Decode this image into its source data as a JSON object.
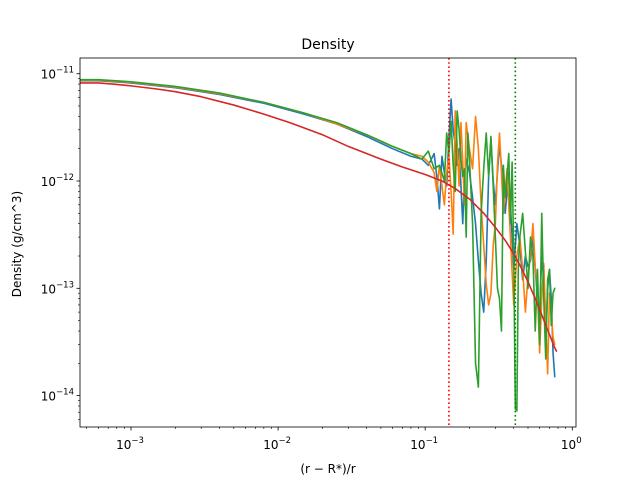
{
  "chart_data": {
    "type": "line",
    "title": "Density",
    "xlabel": "(r − R*)/r",
    "ylabel": "Density (g/cm^3)",
    "xscale": "log",
    "yscale": "log",
    "xlim": [
      0.00045,
      1.06
    ],
    "ylim": [
      5.1e-15,
      1.4e-11
    ],
    "grid": false,
    "legend": "none",
    "x_ticks": [
      {
        "value": 0.001,
        "base": "10",
        "exp": "−3"
      },
      {
        "value": 0.01,
        "base": "10",
        "exp": "−2"
      },
      {
        "value": 0.1,
        "base": "10",
        "exp": "−1"
      },
      {
        "value": 1,
        "base": "10",
        "exp": "0"
      }
    ],
    "y_ticks": [
      {
        "value": 1e-14,
        "base": "10",
        "exp": "−14"
      },
      {
        "value": 1e-13,
        "base": "10",
        "exp": "−13"
      },
      {
        "value": 1e-12,
        "base": "10",
        "exp": "−12"
      },
      {
        "value": 1e-11,
        "base": "10",
        "exp": "−11"
      }
    ],
    "vlines": [
      {
        "x": 0.145,
        "color": "#ff0000",
        "style": "dotted"
      },
      {
        "x": 0.41,
        "color": "#008000",
        "style": "dotted"
      }
    ],
    "series": [
      {
        "color": "#1f77b4",
        "x": [
          0.00045,
          0.0006,
          0.001,
          0.002,
          0.004,
          0.008,
          0.015,
          0.025,
          0.04,
          0.06,
          0.08,
          0.095,
          0.105,
          0.115,
          0.12,
          0.125,
          0.13,
          0.135,
          0.14,
          0.145,
          0.15,
          0.155,
          0.16,
          0.165,
          0.17,
          0.175,
          0.18,
          0.185,
          0.19,
          0.2,
          0.21,
          0.22,
          0.23,
          0.24,
          0.25,
          0.26,
          0.27,
          0.28,
          0.29,
          0.3,
          0.31,
          0.32,
          0.33,
          0.34,
          0.35,
          0.36,
          0.37,
          0.38,
          0.39,
          0.4,
          0.42,
          0.44,
          0.46,
          0.48,
          0.5,
          0.52,
          0.54,
          0.56,
          0.58,
          0.6,
          0.62,
          0.64,
          0.66,
          0.68,
          0.7,
          0.72,
          0.74,
          0.76
        ],
        "y": [
          8.6e-12,
          8.6e-12,
          8.2e-12,
          7.4e-12,
          6.4e-12,
          5.3e-12,
          4.2e-12,
          3.4e-12,
          2.6e-12,
          2e-12,
          1.7e-12,
          1.6e-12,
          1.4e-12,
          1.8e-12,
          1.1e-12,
          5.5e-13,
          1.7e-12,
          1.2e-12,
          9e-13,
          2.5e-12,
          5.8e-12,
          3e-12,
          2.2e-12,
          1.4e-12,
          2e-12,
          9e-13,
          4e-13,
          1.1e-12,
          1.6e-12,
          1.2e-12,
          7e-13,
          4e-13,
          1.8e-13,
          9e-14,
          6e-14,
          1.8e-13,
          1.1e-12,
          2.4e-12,
          1e-12,
          6e-13,
          1.2e-12,
          2.2e-12,
          1.4e-12,
          8e-13,
          5e-13,
          8e-13,
          1.2e-12,
          6e-13,
          3e-13,
          1.5e-13,
          4e-13,
          2.5e-13,
          1.2e-13,
          2e-13,
          1.6e-13,
          1.8e-13,
          3e-13,
          1.5e-13,
          8e-14,
          6e-14,
          2e-13,
          1.2e-13,
          3e-14,
          1e-13,
          1.5e-13,
          8e-14,
          2.5e-14,
          1.5e-14
        ]
      },
      {
        "color": "#ff7f0e",
        "x": [
          0.00045,
          0.0006,
          0.001,
          0.002,
          0.004,
          0.008,
          0.015,
          0.025,
          0.04,
          0.06,
          0.08,
          0.095,
          0.105,
          0.115,
          0.12,
          0.125,
          0.13,
          0.135,
          0.14,
          0.145,
          0.15,
          0.155,
          0.16,
          0.165,
          0.17,
          0.175,
          0.18,
          0.185,
          0.19,
          0.2,
          0.21,
          0.22,
          0.23,
          0.24,
          0.25,
          0.26,
          0.27,
          0.28,
          0.29,
          0.3,
          0.31,
          0.32,
          0.33,
          0.34,
          0.35,
          0.36,
          0.37,
          0.38,
          0.39,
          0.4,
          0.42,
          0.44,
          0.46,
          0.48,
          0.5,
          0.52,
          0.54,
          0.56,
          0.58,
          0.6,
          0.62,
          0.64,
          0.66,
          0.68,
          0.7,
          0.72,
          0.74,
          0.76
        ],
        "y": [
          8.7e-12,
          8.7e-12,
          8.3e-12,
          7.5e-12,
          6.5e-12,
          5.4e-12,
          4.3e-12,
          3.4e-12,
          2.7e-12,
          2.1e-12,
          1.8e-12,
          1.7e-12,
          1.5e-12,
          1.2e-12,
          8e-13,
          1.4e-12,
          9e-13,
          6e-13,
          1.2e-12,
          1.7e-12,
          8e-13,
          3.2e-13,
          4.5e-12,
          2.2e-12,
          9e-13,
          3.5e-12,
          1.5e-12,
          6e-13,
          3.5e-12,
          2e-12,
          1.3e-12,
          4e-12,
          2e-12,
          6e-13,
          2.5e-13,
          1.1e-13,
          7e-14,
          9e-14,
          2.5e-13,
          4e-13,
          1.4e-12,
          2.8e-12,
          1.2e-12,
          5e-13,
          8e-13,
          1.3e-12,
          6e-13,
          3e-13,
          1.4e-13,
          7e-14,
          2e-13,
          3e-13,
          1.5e-13,
          6e-14,
          1.3e-13,
          2e-13,
          4e-13,
          1.6e-13,
          9e-14,
          2.5e-14,
          8e-14,
          1.7e-13,
          5e-14,
          1.6e-14,
          9e-14,
          6e-14,
          3.5e-14,
          3e-14
        ]
      },
      {
        "color": "#2ca02c",
        "x": [
          0.00045,
          0.0006,
          0.001,
          0.002,
          0.004,
          0.008,
          0.015,
          0.025,
          0.04,
          0.06,
          0.08,
          0.095,
          0.105,
          0.115,
          0.125,
          0.135,
          0.14,
          0.145,
          0.15,
          0.155,
          0.16,
          0.165,
          0.17,
          0.175,
          0.18,
          0.185,
          0.19,
          0.195,
          0.2,
          0.21,
          0.22,
          0.23,
          0.24,
          0.25,
          0.26,
          0.27,
          0.28,
          0.29,
          0.3,
          0.31,
          0.32,
          0.33,
          0.34,
          0.35,
          0.36,
          0.37,
          0.38,
          0.39,
          0.4,
          0.41,
          0.42,
          0.43,
          0.44,
          0.46,
          0.48,
          0.5,
          0.52,
          0.54,
          0.56,
          0.58,
          0.6,
          0.62,
          0.64,
          0.66,
          0.68,
          0.7,
          0.72,
          0.74,
          0.76
        ],
        "y": [
          8.8e-12,
          8.8e-12,
          8.4e-12,
          7.6e-12,
          6.6e-12,
          5.4e-12,
          4.3e-12,
          3.5e-12,
          2.7e-12,
          2.1e-12,
          1.8e-12,
          1.6e-12,
          1.9e-12,
          1.3e-12,
          1.4e-12,
          1e-12,
          2.8e-12,
          1.8e-12,
          3.6e-12,
          1.4e-12,
          8e-13,
          4.5e-12,
          3e-12,
          1.6e-12,
          1.1e-12,
          1.3e-12,
          3e-13,
          2.8e-12,
          1.6e-12,
          4e-13,
          2e-14,
          1.2e-14,
          5e-13,
          1.3e-12,
          2.8e-12,
          1.1e-12,
          2.6e-12,
          9e-13,
          3e-13,
          1e-13,
          8e-14,
          4e-14,
          1.4e-12,
          7e-13,
          1.1e-12,
          1.8e-12,
          4e-13,
          1.5e-12,
          2e-13,
          7.5e-15,
          7.2e-15,
          1.6e-13,
          3e-13,
          5e-13,
          2.2e-13,
          1e-13,
          3e-13,
          2e-13,
          4e-14,
          1.5e-13,
          3e-14,
          5e-13,
          8e-14,
          2.2e-14,
          1.2e-13,
          1.5e-13,
          4.5e-14,
          9e-14,
          1e-13
        ]
      },
      {
        "color": "#d62728",
        "x": [
          0.00045,
          0.0006,
          0.00075,
          0.001,
          0.0015,
          0.002,
          0.003,
          0.005,
          0.008,
          0.012,
          0.02,
          0.03,
          0.05,
          0.07,
          0.1,
          0.13,
          0.16,
          0.2,
          0.25,
          0.3,
          0.35,
          0.4,
          0.45,
          0.5,
          0.55,
          0.6,
          0.65,
          0.7,
          0.75,
          0.78
        ],
        "y": [
          8.2e-12,
          8.2e-12,
          8e-12,
          7.7e-12,
          7.2e-12,
          6.8e-12,
          6.1e-12,
          5.1e-12,
          4.2e-12,
          3.5e-12,
          2.7e-12,
          2.1e-12,
          1.6e-12,
          1.35e-12,
          1.15e-12,
          1e-12,
          8.5e-13,
          6.8e-13,
          5e-13,
          3.7e-13,
          2.8e-13,
          2.1e-13,
          1.55e-13,
          1.15e-13,
          8.5e-14,
          6.3e-14,
          4.8e-14,
          3.7e-14,
          2.9e-14,
          2.6e-14
        ]
      }
    ]
  }
}
